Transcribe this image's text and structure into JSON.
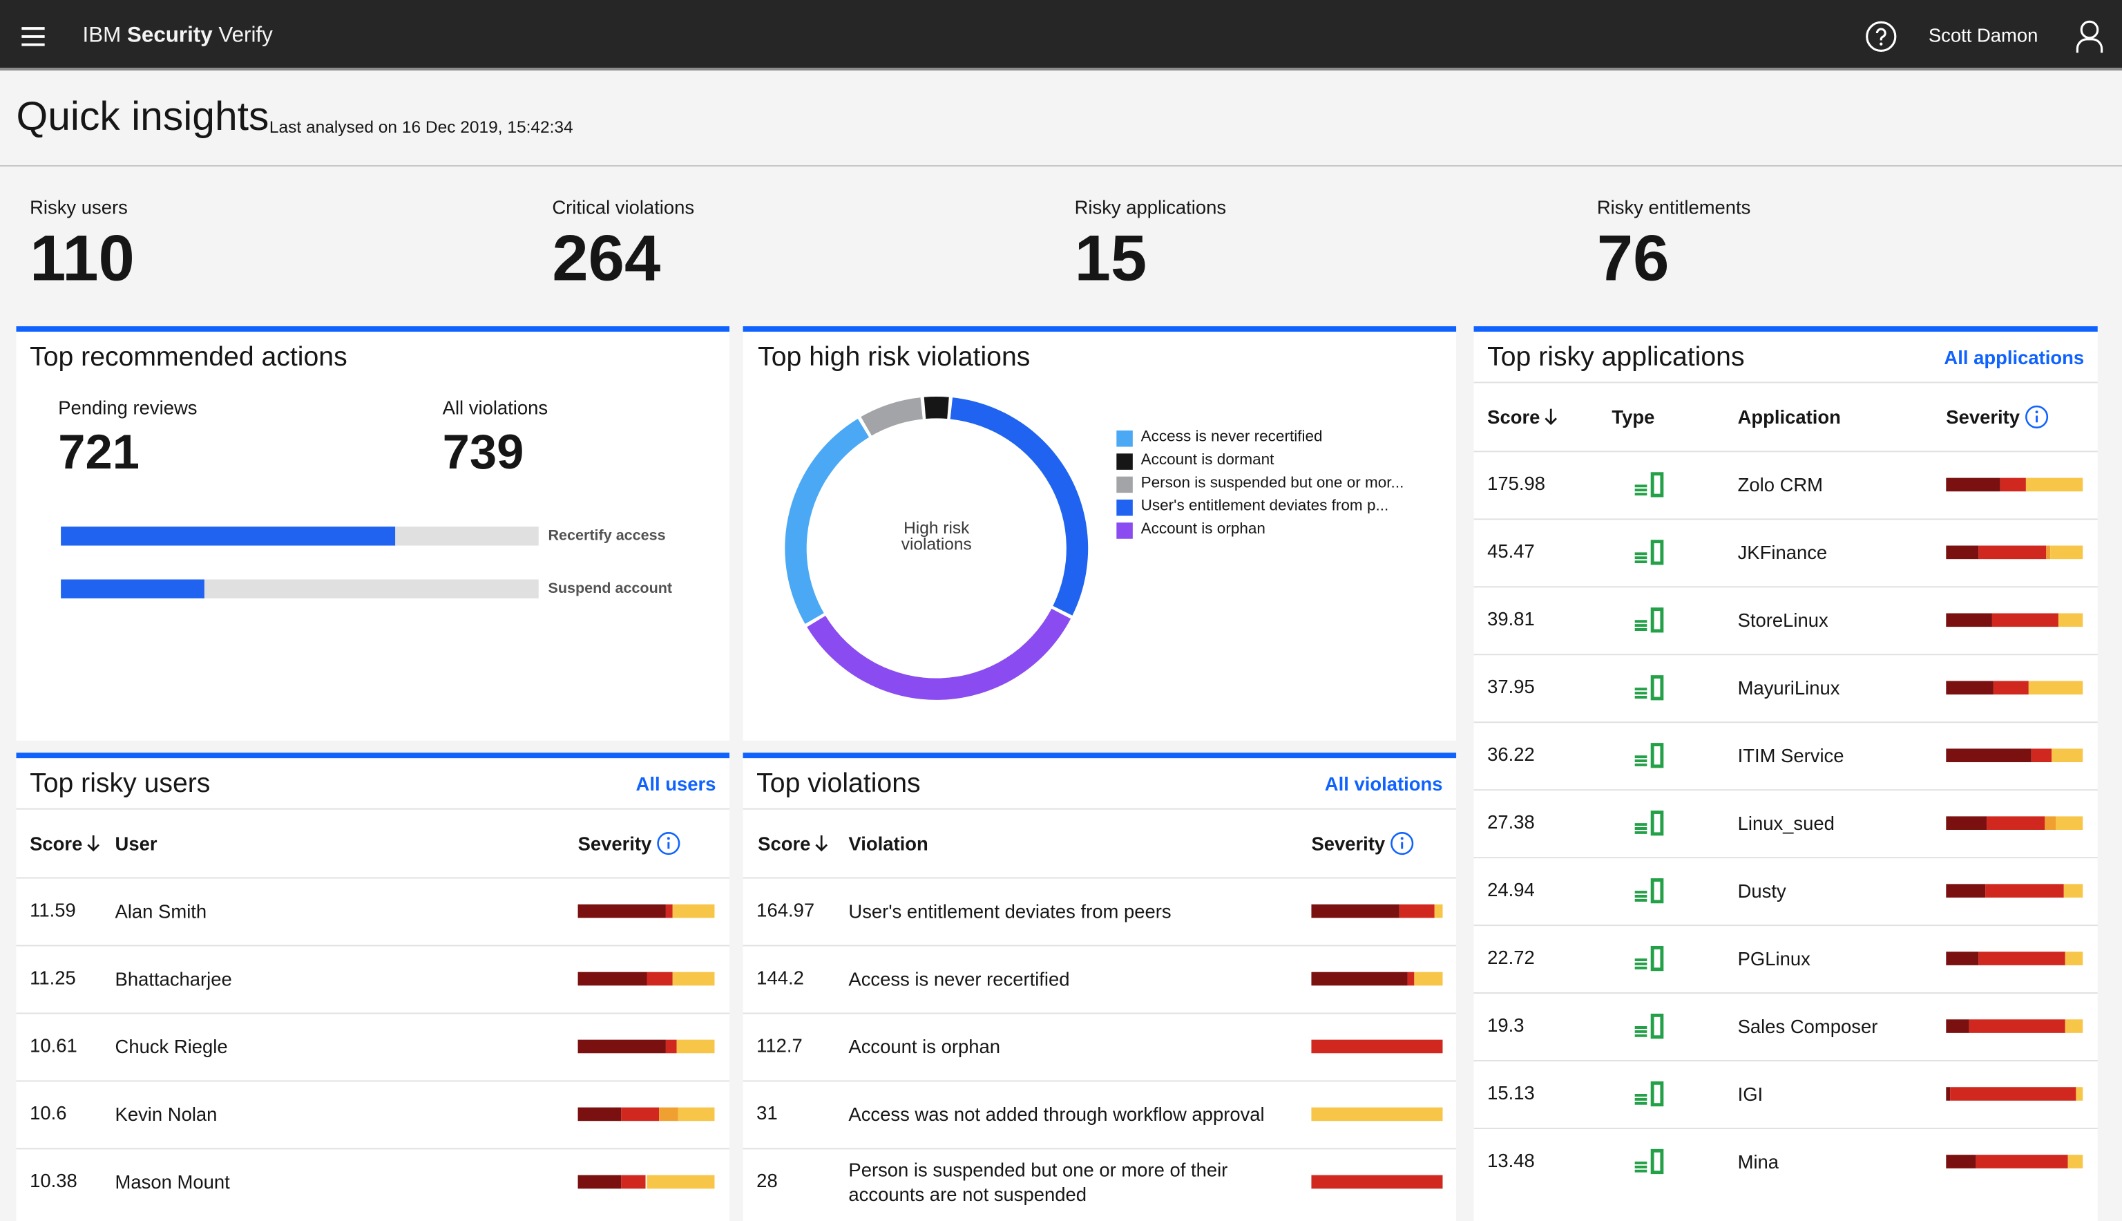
{
  "header": {
    "brand_prefix": "IBM",
    "brand_bold": "Security",
    "brand_suffix": "Verify",
    "user": "Scott Damon"
  },
  "page": {
    "title": "Quick insights",
    "subtitle": "Last analysed on 16 Dec 2019, 15:42:34"
  },
  "kpis": [
    {
      "label": "Risky users",
      "value": 110
    },
    {
      "label": "Critical violations",
      "value": 264
    },
    {
      "label": "Risky applications",
      "value": 15
    },
    {
      "label": "Risky entitlements",
      "value": 76
    }
  ],
  "severity_colors": [
    "#7a1010",
    "#d0281f",
    "#f0a030",
    "#f7c548"
  ],
  "recommended": {
    "title": "Top recommended actions",
    "stats": [
      {
        "label": "Pending reviews",
        "value": 721
      },
      {
        "label": "All violations",
        "value": 739
      }
    ],
    "xlim": [
      0,
      100
    ],
    "bars": [
      {
        "label": "Recertify access",
        "value": 70
      },
      {
        "label": "Suspend account",
        "value": 30
      }
    ]
  },
  "donut": {
    "type": "donut",
    "title": "Top high risk violations",
    "center_label": "High risk violations",
    "series": [
      {
        "name": "Access is never recertified",
        "color": "#4aa8f5",
        "value": 25
      },
      {
        "name": "Account is dormant",
        "color": "#161616",
        "value": 3
      },
      {
        "name": "Person is suspended but one or mor...",
        "color": "#a2a4a8",
        "value": 7
      },
      {
        "name": "User's entitlement deviates from p...",
        "color": "#1f63f0",
        "value": 31
      },
      {
        "name": "Account is orphan",
        "color": "#8a4cf0",
        "value": 34
      }
    ]
  },
  "users": {
    "title": "Top risky users",
    "link": "All users",
    "columns": [
      "Score",
      "User",
      "Severity"
    ],
    "rows": [
      {
        "score": 11.59,
        "name": "Alan Smith",
        "severity": [
          64,
          5,
          0,
          31
        ]
      },
      {
        "score": 11.25,
        "name": "Bhattacharjee",
        "severity": [
          50,
          19,
          0,
          31
        ]
      },
      {
        "score": 10.61,
        "name": "Chuck Riegle",
        "severity": [
          64,
          8,
          0,
          28
        ]
      },
      {
        "score": 10.6,
        "name": "Kevin Nolan",
        "severity": [
          32,
          27,
          14,
          27
        ]
      },
      {
        "score": 10.38,
        "name": "Mason Mount",
        "severity": [
          32,
          18,
          0,
          50
        ]
      }
    ]
  },
  "violations": {
    "title": "Top violations",
    "link": "All violations",
    "columns": [
      "Score",
      "Violation",
      "Severity"
    ],
    "rows": [
      {
        "score": 164.97,
        "name": "User's entitlement deviates from peers",
        "severity": [
          67,
          27,
          0,
          6
        ]
      },
      {
        "score": 144.2,
        "name": "Access is never recertified",
        "severity": [
          73,
          5,
          0,
          22
        ]
      },
      {
        "score": 112.7,
        "name": "Account is orphan",
        "severity": [
          0,
          100,
          0,
          0
        ]
      },
      {
        "score": 31,
        "name": "Access was not added through workflow approval",
        "severity": [
          0,
          0,
          0,
          100
        ]
      },
      {
        "score": 28,
        "name": "Person is suspended but one or more of their accounts are not suspended",
        "severity": [
          0,
          100,
          0,
          0
        ]
      }
    ]
  },
  "applications": {
    "title": "Top risky applications",
    "link": "All applications",
    "columns": [
      "Score",
      "Type",
      "Application",
      "Severity"
    ],
    "rows": [
      {
        "score": 175.98,
        "name": "Zolo CRM",
        "severity": [
          40,
          18,
          0,
          42
        ]
      },
      {
        "score": 45.47,
        "name": "JKFinance",
        "severity": [
          24,
          49,
          3,
          24
        ]
      },
      {
        "score": 39.81,
        "name": "StoreLinux",
        "severity": [
          34,
          48,
          0,
          18
        ]
      },
      {
        "score": 37.95,
        "name": "MayuriLinux",
        "severity": [
          35,
          25,
          0,
          40
        ]
      },
      {
        "score": 36.22,
        "name": "ITIM Service",
        "severity": [
          62,
          15,
          0,
          23
        ]
      },
      {
        "score": 27.38,
        "name": "Linux_sued",
        "severity": [
          30,
          42,
          8,
          20
        ]
      },
      {
        "score": 24.94,
        "name": "Dusty",
        "severity": [
          29,
          57,
          0,
          14
        ]
      },
      {
        "score": 22.72,
        "name": "PGLinux",
        "severity": [
          24,
          63,
          0,
          13
        ]
      },
      {
        "score": 19.3,
        "name": "Sales Composer",
        "severity": [
          17,
          70,
          0,
          13
        ]
      },
      {
        "score": 15.13,
        "name": "IGI",
        "severity": [
          3,
          92,
          0,
          5
        ]
      },
      {
        "score": 13.48,
        "name": "Mina",
        "severity": [
          22,
          67,
          0,
          11
        ]
      }
    ]
  }
}
